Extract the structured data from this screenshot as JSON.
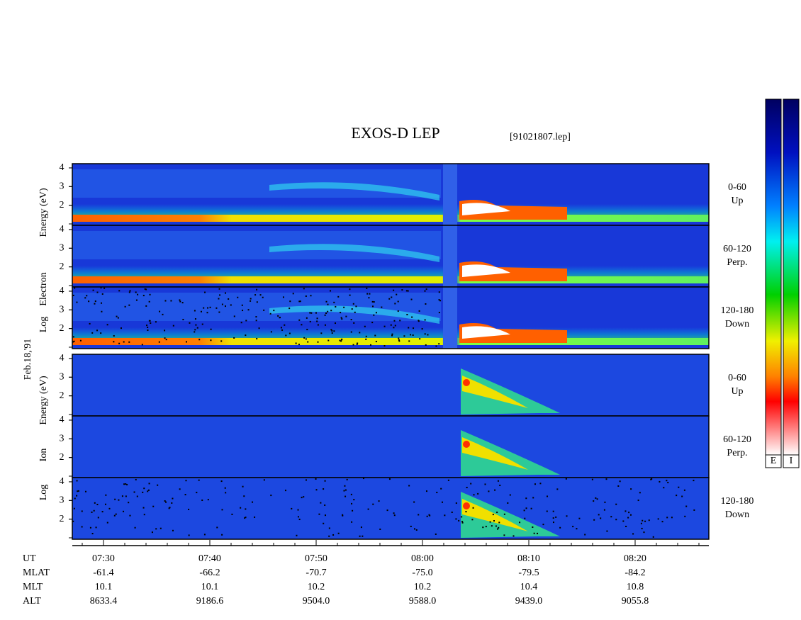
{
  "title": "EXOS-D LEP",
  "file": "[91021807.lep]",
  "date": "Feb.18,'91",
  "ylim": [
    1,
    4.15
  ],
  "yticks": [
    2,
    3,
    4
  ],
  "groups": [
    {
      "axis_label": [
        "Log",
        "Electron",
        "Energy (eV)"
      ],
      "panels": [
        {
          "angle": "0-60",
          "dir": "Up"
        },
        {
          "angle": "60-120",
          "dir": "Perp."
        },
        {
          "angle": "120-180",
          "dir": "Down"
        }
      ]
    },
    {
      "axis_label": [
        "Log",
        "Ion",
        "Energy (eV)"
      ],
      "panels": [
        {
          "angle": "0-60",
          "dir": "Up"
        },
        {
          "angle": "60-120",
          "dir": "Perp."
        },
        {
          "angle": "120-180",
          "dir": "Down"
        }
      ]
    }
  ],
  "colorbars": [
    "E",
    "I"
  ],
  "ephemeris": {
    "labels": [
      "UT",
      "MLAT",
      "MLT",
      "ALT"
    ],
    "columns": [
      [
        "07:30",
        "-61.4",
        "10.1",
        "8633.4"
      ],
      [
        "07:40",
        "-66.2",
        "10.1",
        "9186.6"
      ],
      [
        "07:50",
        "-70.7",
        "10.2",
        "9504.0"
      ],
      [
        "08:00",
        "-75.0",
        "10.2",
        "9588.0"
      ],
      [
        "08:10",
        "-79.5",
        "10.4",
        "9439.0"
      ],
      [
        "08:20",
        "-84.2",
        "10.8",
        "9055.8"
      ]
    ]
  }
}
